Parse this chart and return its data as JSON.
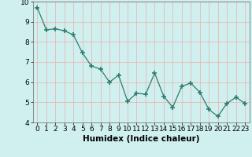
{
  "x": [
    0,
    1,
    2,
    3,
    4,
    5,
    6,
    7,
    8,
    9,
    10,
    11,
    12,
    13,
    14,
    15,
    16,
    17,
    18,
    19,
    20,
    21,
    22,
    23
  ],
  "y": [
    9.7,
    8.6,
    8.65,
    8.55,
    8.35,
    7.45,
    6.8,
    6.65,
    6.0,
    6.35,
    5.05,
    5.45,
    5.4,
    6.45,
    5.3,
    4.75,
    5.8,
    5.95,
    5.5,
    4.65,
    4.3,
    4.95,
    5.25,
    4.95
  ],
  "line_color": "#2e7d6e",
  "marker_color": "#2e7d6e",
  "bg_color": "#cff0ee",
  "grid_color": "#e8b8b8",
  "xlabel": "Humidex (Indice chaleur)",
  "ylim": [
    4,
    10
  ],
  "xlim": [
    -0.5,
    23.5
  ],
  "yticks": [
    4,
    5,
    6,
    7,
    8,
    9,
    10
  ],
  "xticks": [
    0,
    1,
    2,
    3,
    4,
    5,
    6,
    7,
    8,
    9,
    10,
    11,
    12,
    13,
    14,
    15,
    16,
    17,
    18,
    19,
    20,
    21,
    22,
    23
  ],
  "xlabel_fontsize": 7.5,
  "tick_fontsize": 6.5
}
